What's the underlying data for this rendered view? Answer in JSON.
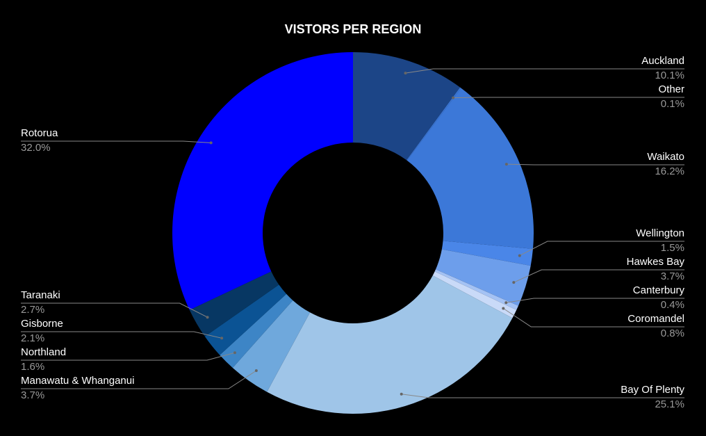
{
  "chart_data": {
    "type": "donut",
    "title": "VISTORS PER REGION",
    "categories": [
      "Auckland",
      "Other",
      "Waikato",
      "Wellington",
      "Hawkes Bay",
      "Canterbury",
      "Coromandel",
      "Bay Of Plenty",
      "Manawatu & Whanganui",
      "Northland",
      "Gisborne",
      "Taranaki",
      "Rotorua"
    ],
    "values": [
      10.1,
      0.1,
      16.2,
      1.5,
      3.7,
      0.4,
      0.8,
      25.1,
      3.7,
      1.6,
      2.1,
      2.7,
      32.0
    ],
    "value_labels": [
      "10.1%",
      "0.1%",
      "16.2%",
      "1.5%",
      "3.7%",
      "0.4%",
      "0.8%",
      "25.1%",
      "3.7%",
      "1.6%",
      "2.1%",
      "2.7%",
      "32.0%"
    ],
    "colors": [
      "#1c4587",
      "#3c78d8",
      "#3c78d8",
      "#4a86e8",
      "#6d9eeb",
      "#a4c2f4",
      "#c9daf8",
      "#9fc5e8",
      "#6fa8dc",
      "#3d85c6",
      "#0b5394",
      "#073763",
      "#0000ff"
    ]
  }
}
